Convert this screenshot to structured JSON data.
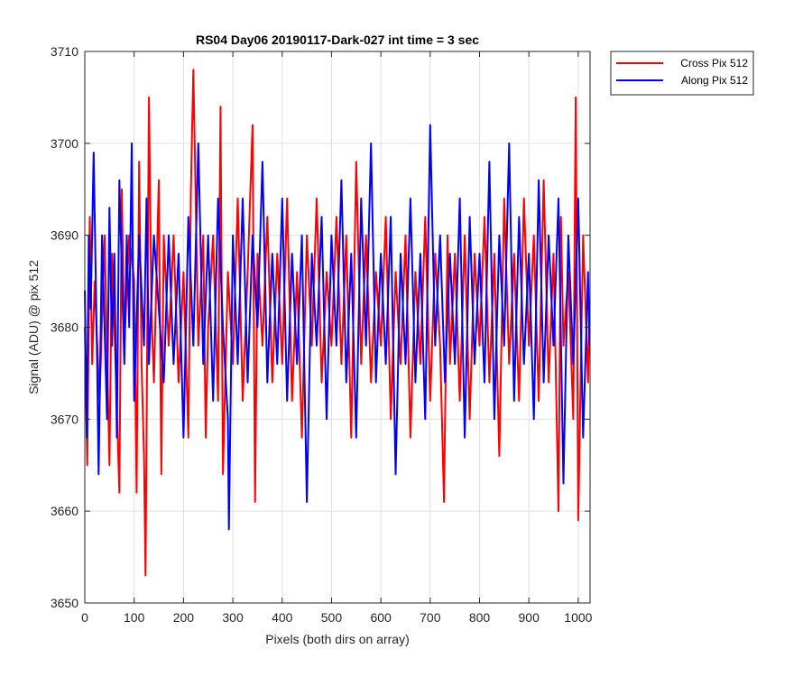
{
  "chart_data": {
    "type": "line",
    "title": "RS04 Day06 20190117-Dark-027 int time = 3 sec",
    "xlabel": "Pixels (both dirs on array)",
    "ylabel": "Signal (ADU) @ pix 512",
    "xlim": [
      0,
      1024
    ],
    "ylim": [
      3650,
      3710
    ],
    "xticks": [
      0,
      100,
      200,
      300,
      400,
      500,
      600,
      700,
      800,
      900,
      1000
    ],
    "yticks": [
      3650,
      3660,
      3670,
      3680,
      3690,
      3700,
      3710
    ],
    "grid": true,
    "legend_position": "outside-top-right",
    "series": [
      {
        "name": "Cross Pix 512",
        "color": "#ff0000",
        "x": [
          0,
          5,
          10,
          15,
          20,
          30,
          40,
          50,
          55,
          60,
          70,
          75,
          80,
          90,
          100,
          105,
          110,
          115,
          120,
          123,
          130,
          135,
          140,
          150,
          155,
          160,
          170,
          180,
          190,
          200,
          210,
          215,
          220,
          230,
          240,
          245,
          250,
          260,
          270,
          275,
          280,
          290,
          300,
          310,
          320,
          330,
          340,
          345,
          350,
          360,
          370,
          380,
          390,
          400,
          410,
          420,
          430,
          440,
          450,
          460,
          470,
          480,
          490,
          500,
          510,
          520,
          530,
          540,
          550,
          560,
          570,
          580,
          590,
          600,
          610,
          620,
          630,
          640,
          650,
          660,
          670,
          680,
          690,
          700,
          710,
          720,
          728,
          735,
          740,
          750,
          760,
          770,
          780,
          790,
          800,
          810,
          820,
          830,
          840,
          850,
          860,
          870,
          880,
          890,
          900,
          910,
          920,
          930,
          940,
          950,
          960,
          965,
          970,
          980,
          990,
          995,
          1000,
          1010,
          1020,
          1023
        ],
        "y": [
          3680,
          3665,
          3692,
          3676,
          3685,
          3672,
          3690,
          3665,
          3688,
          3680,
          3662,
          3695,
          3678,
          3690,
          3685,
          3662,
          3698,
          3676,
          3666,
          3653,
          3705,
          3682,
          3674,
          3696,
          3664,
          3690,
          3678,
          3690,
          3674,
          3686,
          3668,
          3695,
          3708,
          3678,
          3690,
          3668,
          3680,
          3690,
          3672,
          3704,
          3664,
          3686,
          3676,
          3694,
          3672,
          3686,
          3702,
          3661,
          3688,
          3678,
          3692,
          3674,
          3688,
          3676,
          3694,
          3672,
          3686,
          3668,
          3690,
          3678,
          3694,
          3674,
          3686,
          3678,
          3692,
          3676,
          3690,
          3668,
          3698,
          3676,
          3690,
          3674,
          3686,
          3678,
          3692,
          3670,
          3686,
          3676,
          3690,
          3668,
          3686,
          3676,
          3692,
          3672,
          3688,
          3678,
          3661,
          3690,
          3676,
          3688,
          3672,
          3690,
          3670,
          3688,
          3678,
          3692,
          3674,
          3688,
          3666,
          3694,
          3676,
          3688,
          3672,
          3694,
          3678,
          3690,
          3672,
          3696,
          3674,
          3688,
          3660,
          3692,
          3678,
          3686,
          3670,
          3705,
          3659,
          3690,
          3674,
          3682
        ]
      },
      {
        "name": "Along Pix 512",
        "color": "#0000ff",
        "x": [
          0,
          4,
          8,
          12,
          18,
          25,
          28,
          35,
          40,
          45,
          50,
          55,
          60,
          65,
          70,
          80,
          85,
          90,
          95,
          100,
          110,
          120,
          125,
          130,
          140,
          150,
          160,
          170,
          180,
          190,
          200,
          210,
          220,
          230,
          240,
          250,
          260,
          270,
          280,
          290,
          292,
          300,
          310,
          320,
          330,
          340,
          350,
          360,
          370,
          380,
          390,
          400,
          410,
          420,
          430,
          440,
          450,
          460,
          470,
          480,
          490,
          500,
          510,
          520,
          530,
          540,
          550,
          560,
          570,
          580,
          590,
          600,
          610,
          620,
          630,
          640,
          650,
          660,
          670,
          680,
          690,
          700,
          710,
          720,
          730,
          740,
          750,
          760,
          770,
          780,
          790,
          800,
          810,
          820,
          830,
          840,
          850,
          860,
          870,
          880,
          890,
          900,
          910,
          920,
          930,
          940,
          950,
          960,
          970,
          980,
          990,
          1000,
          1010,
          1020,
          1023
        ],
        "y": [
          3684,
          3668,
          3690,
          3682,
          3699,
          3676,
          3664,
          3690,
          3680,
          3670,
          3693,
          3678,
          3688,
          3668,
          3696,
          3676,
          3690,
          3680,
          3700,
          3672,
          3690,
          3678,
          3694,
          3676,
          3690,
          3682,
          3674,
          3690,
          3676,
          3688,
          3668,
          3692,
          3678,
          3700,
          3676,
          3690,
          3672,
          3694,
          3680,
          3670,
          3658,
          3690,
          3676,
          3694,
          3674,
          3690,
          3680,
          3698,
          3674,
          3688,
          3676,
          3694,
          3672,
          3688,
          3676,
          3690,
          3661,
          3688,
          3678,
          3692,
          3670,
          3690,
          3678,
          3696,
          3674,
          3688,
          3668,
          3694,
          3678,
          3700,
          3674,
          3688,
          3676,
          3692,
          3664,
          3688,
          3676,
          3694,
          3674,
          3688,
          3670,
          3702,
          3678,
          3690,
          3674,
          3688,
          3676,
          3694,
          3668,
          3692,
          3676,
          3688,
          3674,
          3698,
          3670,
          3690,
          3678,
          3700,
          3672,
          3692,
          3676,
          3688,
          3670,
          3696,
          3674,
          3690,
          3678,
          3694,
          3663,
          3690,
          3676,
          3694,
          3668,
          3686,
          3678
        ]
      }
    ]
  }
}
